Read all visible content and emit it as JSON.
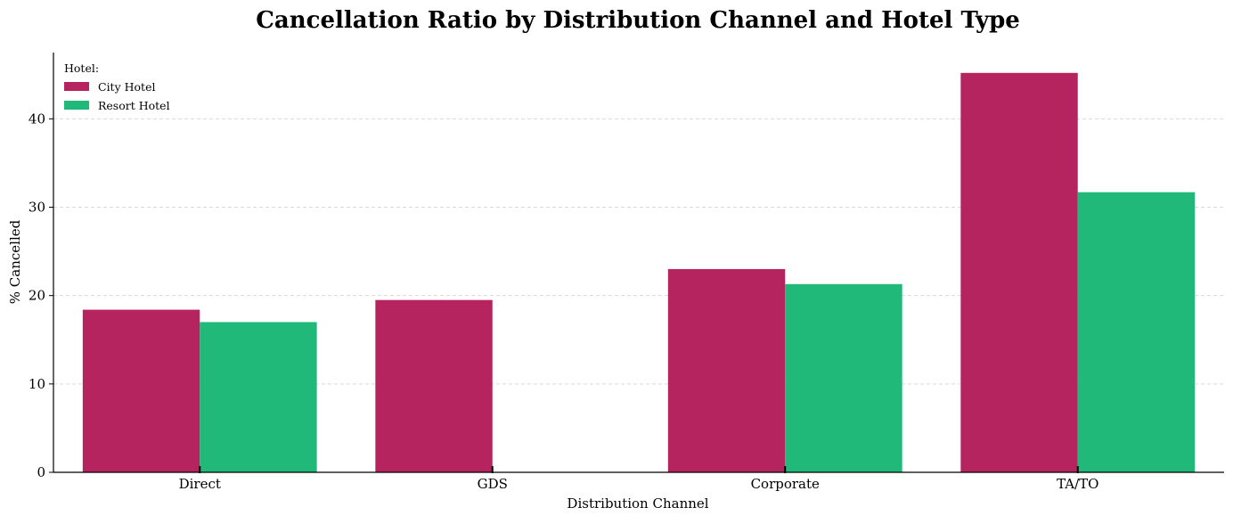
{
  "chart_data": {
    "type": "bar",
    "title": "Cancellation Ratio by Distribution Channel and Hotel Type",
    "xlabel": "Distribution Channel",
    "ylabel": "% Cancelled",
    "categories": [
      "Direct",
      "GDS",
      "Corporate",
      "TA/TO"
    ],
    "series": [
      {
        "name": "City Hotel",
        "color": "#b5245f",
        "values": [
          18.4,
          19.5,
          23.0,
          45.2
        ]
      },
      {
        "name": "Resort Hotel",
        "color": "#21b979",
        "values": [
          17.0,
          0,
          21.3,
          31.7
        ]
      }
    ],
    "ylim": [
      0,
      47.5
    ],
    "yticks": [
      0,
      10,
      20,
      30,
      40
    ],
    "grid": true,
    "legend": {
      "title": "Hotel:",
      "placement": "top-left"
    }
  }
}
